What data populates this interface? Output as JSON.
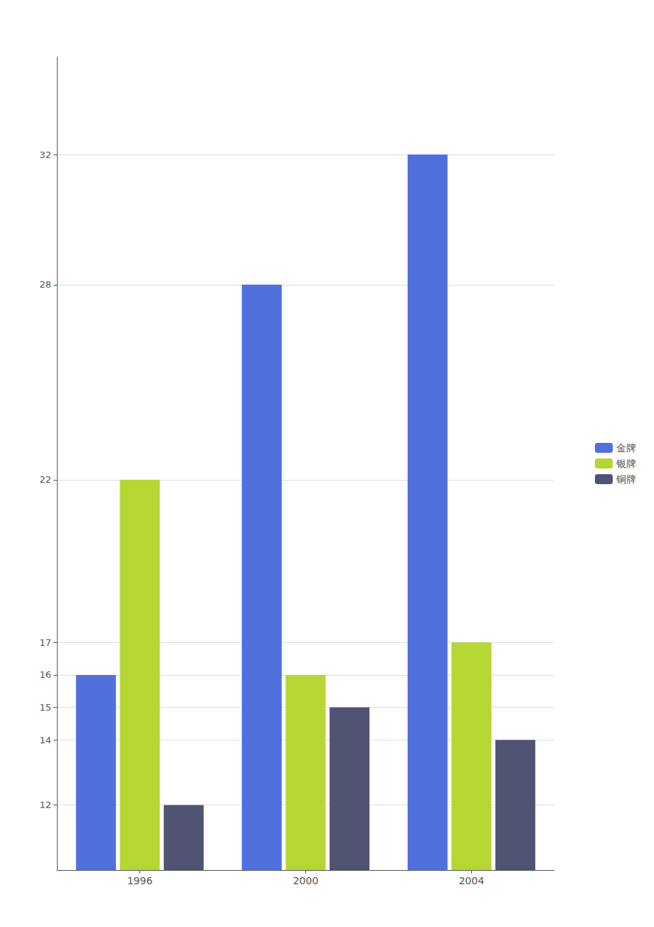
{
  "chart_data": {
    "type": "bar",
    "categories": [
      "1996",
      "2000",
      "2004"
    ],
    "series": [
      {
        "name": "金牌",
        "values": [
          16,
          28,
          32
        ]
      },
      {
        "name": "银牌",
        "values": [
          22,
          16,
          17
        ]
      },
      {
        "name": "铜牌",
        "values": [
          12,
          15,
          14
        ]
      }
    ],
    "ylim": [
      10,
      35
    ],
    "yticks": [
      12,
      14,
      15,
      16,
      17,
      22,
      28,
      32
    ],
    "grid": true,
    "legend": "right"
  }
}
